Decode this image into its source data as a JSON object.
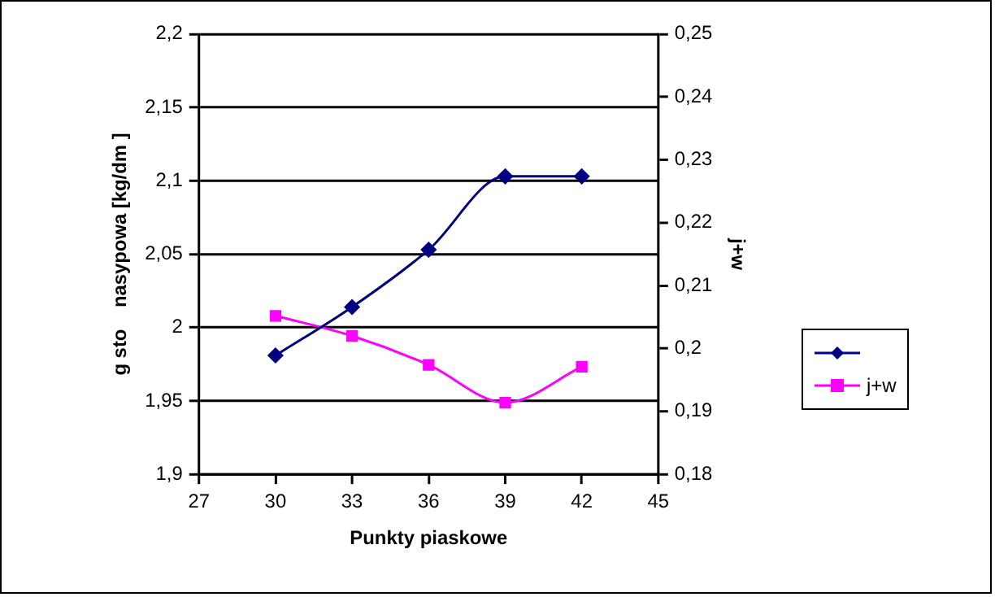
{
  "chart_data": {
    "type": "line",
    "xlabel": "Punkty piaskowe",
    "ylabel": "g sto    nasypowa [kg/dm ]",
    "y2label": "j+w",
    "x": [
      30,
      33,
      36,
      39,
      42
    ],
    "series": [
      {
        "color": "#000080",
        "marker": "diamond",
        "values": [
          1.981,
          2.014,
          2.053,
          2.103,
          2.103
        ]
      },
      {
        "name": "j+w",
        "color": "#ff00ff",
        "marker": "square",
        "axis": "y2",
        "values": [
          0.2052,
          0.202,
          0.1974,
          0.1914,
          0.1971
        ]
      }
    ],
    "xlim": [
      27,
      45
    ],
    "xticks": [
      27,
      30,
      33,
      36,
      39,
      42,
      45
    ],
    "ylim": [
      1.9,
      2.2
    ],
    "yticks": [
      {
        "value": 1.9,
        "label": "1,9"
      },
      {
        "value": 1.95,
        "label": "1,95"
      },
      2,
      {
        "value": 2.05,
        "label": "2,05"
      },
      {
        "value": 2.1,
        "label": "2,1"
      },
      {
        "value": 2.15,
        "label": "2,15"
      },
      {
        "value": 2.2,
        "label": "2,2"
      }
    ],
    "y2lim": [
      0.18,
      0.25
    ],
    "y2ticks": [
      {
        "value": 0.18,
        "label": "0,18"
      },
      {
        "value": 0.19,
        "label": "0,19"
      },
      {
        "value": 0.2,
        "label": "0,2"
      },
      {
        "value": 0.21,
        "label": "0,21"
      },
      {
        "value": 0.22,
        "label": "0,22"
      },
      {
        "value": 0.23,
        "label": "0,23"
      },
      {
        "value": 0.24,
        "label": "0,24"
      },
      {
        "value": 0.25,
        "label": "0,25"
      }
    ],
    "grid": "y",
    "legend": "right",
    "line_style": "solid"
  }
}
